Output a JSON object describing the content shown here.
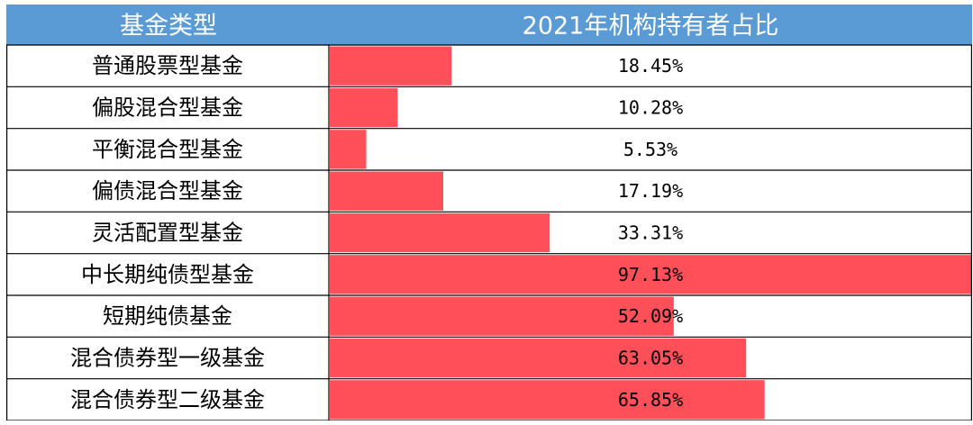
{
  "table": {
    "header": {
      "category_label": "基金类型",
      "value_label": "2021年机构持有者占比"
    }
  },
  "colors": {
    "header_bg": "#5b9bd5",
    "header_text": "#ffffff",
    "bar": "#ff505a",
    "grid": "#000000",
    "text": "#000000"
  },
  "chart_data": {
    "type": "bar",
    "orientation": "horizontal",
    "categories": [
      "普通股票型基金",
      "偏股混合型基金",
      "平衡混合型基金",
      "偏债混合型基金",
      "灵活配置型基金",
      "中长期纯债型基金",
      "短期纯债基金",
      "混合债券型一级基金",
      "混合债券型二级基金"
    ],
    "values": [
      18.45,
      10.28,
      5.53,
      17.19,
      33.31,
      97.13,
      52.09,
      63.05,
      65.85
    ],
    "value_labels": [
      "18.45%",
      "10.28%",
      "5.53%",
      "17.19%",
      "33.31%",
      "97.13%",
      "52.09%",
      "63.05%",
      "65.85%"
    ],
    "xlim": [
      0,
      97.13
    ],
    "grid": true,
    "legend": "none"
  }
}
